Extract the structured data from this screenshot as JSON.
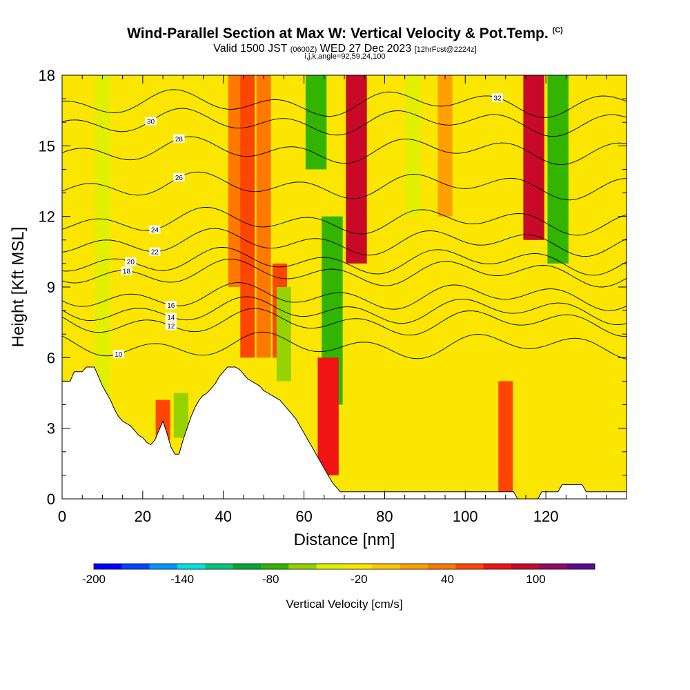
{
  "header": {
    "title": "Wind-Parallel Section at Max W: Vertical Velocity & Pot.Temp.",
    "title_tag": "(C)",
    "subtitle_main": "Valid 1500 JST",
    "subtitle_utc": "(0600Z)",
    "subtitle_date": "WED 27 Dec 2023",
    "subtitle_fcst": "[12hrFcst@2224z]",
    "params": "i,j,k,angle=92,59,24,100"
  },
  "chart_data": {
    "type": "heatmap",
    "xlabel": "Distance [nm]",
    "ylabel": "Height [Kft MSL]",
    "xlim": [
      0,
      140
    ],
    "ylim": [
      0,
      18
    ],
    "x_ticks": [
      0,
      20,
      40,
      60,
      80,
      100,
      120
    ],
    "y_ticks": [
      0,
      3,
      6,
      9,
      12,
      15,
      18
    ],
    "colorbar": {
      "label": "Vertical Velocity [cm/s]",
      "min": -200,
      "max": 140,
      "step": 20,
      "tick_labels": [
        "-200",
        "-140",
        "-80",
        "-20",
        "40",
        "100"
      ],
      "tick_values": [
        -200,
        -140,
        -80,
        -20,
        40,
        100
      ],
      "colors": [
        "#0000ff",
        "#0046ff",
        "#0096ff",
        "#00e1e1",
        "#00c878",
        "#00aa32",
        "#32b400",
        "#96d200",
        "#e1f000",
        "#fae600",
        "#ffc800",
        "#ffa000",
        "#ff7800",
        "#ff4600",
        "#f01414",
        "#c80a28",
        "#960a64",
        "#5a0a96"
      ]
    },
    "terrain": [
      [
        0,
        5.0
      ],
      [
        2,
        5.0
      ],
      [
        3,
        5.4
      ],
      [
        5,
        5.4
      ],
      [
        6,
        5.6
      ],
      [
        8,
        5.6
      ],
      [
        9,
        5.2
      ],
      [
        10,
        4.8
      ],
      [
        11,
        4.5
      ],
      [
        12,
        4.2
      ],
      [
        13,
        3.8
      ],
      [
        14,
        3.5
      ],
      [
        15,
        3.3
      ],
      [
        16,
        3.2
      ],
      [
        17,
        3.1
      ],
      [
        18,
        2.9
      ],
      [
        19,
        2.7
      ],
      [
        20,
        2.6
      ],
      [
        21,
        2.4
      ],
      [
        22,
        2.3
      ],
      [
        23,
        2.5
      ],
      [
        24,
        2.9
      ],
      [
        25,
        3.3
      ],
      [
        26,
        2.8
      ],
      [
        27,
        2.2
      ],
      [
        28,
        1.9
      ],
      [
        29,
        1.9
      ],
      [
        30,
        2.5
      ],
      [
        31,
        3.0
      ],
      [
        32,
        3.5
      ],
      [
        33,
        3.9
      ],
      [
        34,
        4.2
      ],
      [
        35,
        4.4
      ],
      [
        36,
        4.5
      ],
      [
        37,
        4.7
      ],
      [
        38,
        4.9
      ],
      [
        39,
        5.2
      ],
      [
        40,
        5.4
      ],
      [
        41,
        5.6
      ],
      [
        43,
        5.6
      ],
      [
        44,
        5.5
      ],
      [
        45,
        5.3
      ],
      [
        46,
        5.1
      ],
      [
        47,
        5.0
      ],
      [
        48,
        4.9
      ],
      [
        49,
        4.8
      ],
      [
        50,
        4.6
      ],
      [
        51,
        4.5
      ],
      [
        52,
        4.4
      ],
      [
        53,
        4.3
      ],
      [
        54,
        4.2
      ],
      [
        55,
        4.0
      ],
      [
        56,
        3.8
      ],
      [
        57,
        3.6
      ],
      [
        58,
        3.4
      ],
      [
        59,
        3.1
      ],
      [
        60,
        2.8
      ],
      [
        61,
        2.5
      ],
      [
        62,
        2.2
      ],
      [
        63,
        1.9
      ],
      [
        64,
        1.6
      ],
      [
        65,
        1.3
      ],
      [
        66,
        1.0
      ],
      [
        67,
        0.7
      ],
      [
        68,
        0.5
      ],
      [
        69,
        0.3
      ],
      [
        70,
        0.3
      ],
      [
        110,
        0.3
      ],
      [
        112,
        0.3
      ],
      [
        113,
        0.0
      ],
      [
        118,
        0.0
      ],
      [
        119,
        0.3
      ],
      [
        123,
        0.3
      ],
      [
        124,
        0.6
      ],
      [
        129,
        0.6
      ],
      [
        130,
        0.3
      ],
      [
        140,
        0.3
      ]
    ],
    "velocity_bands": [
      {
        "x": 10,
        "z_bottom": 4.5,
        "z_top": 18,
        "value": -40
      },
      {
        "x": 25,
        "z_bottom": 2.5,
        "z_top": 4.2,
        "value": 60
      },
      {
        "x": 29.5,
        "z_bottom": 2.6,
        "z_top": 4.5,
        "value": -60
      },
      {
        "x": 43,
        "z_bottom": 9,
        "z_top": 18,
        "value": 40
      },
      {
        "x": 46,
        "z_bottom": 6,
        "z_top": 18,
        "value": 60
      },
      {
        "x": 50,
        "z_bottom": 6,
        "z_top": 18,
        "value": 40
      },
      {
        "x": 54,
        "z_bottom": 6,
        "z_top": 10,
        "value": 60
      },
      {
        "x": 55,
        "z_bottom": 5,
        "z_top": 9,
        "value": -60
      },
      {
        "x": 59,
        "z_bottom": 7,
        "z_top": 18,
        "value": -20
      },
      {
        "x": 63,
        "z_bottom": 14,
        "z_top": 18,
        "value": -80
      },
      {
        "x": 67,
        "z_bottom": 4,
        "z_top": 12,
        "value": -80
      },
      {
        "x": 66,
        "z_bottom": 1,
        "z_top": 6,
        "value": 80
      },
      {
        "x": 73,
        "z_bottom": 10,
        "z_top": 18,
        "value": 100
      },
      {
        "x": 87,
        "z_bottom": 12,
        "z_top": 18,
        "value": -40
      },
      {
        "x": 95,
        "z_bottom": 12,
        "z_top": 18,
        "value": 20
      },
      {
        "x": 110,
        "z_bottom": 0.3,
        "z_top": 5,
        "value": 60
      },
      {
        "x": 117,
        "z_bottom": 11,
        "z_top": 18,
        "value": 100
      },
      {
        "x": 123,
        "z_bottom": 10,
        "z_top": 18,
        "value": -80
      }
    ],
    "theta_contours": [
      {
        "value": 10,
        "label": "10",
        "label_x": 14,
        "height": 6.5
      },
      {
        "value": 12,
        "label": "12",
        "label_x": 27,
        "height": 7.5
      },
      {
        "value": 14,
        "label": "14",
        "label_x": 27,
        "height": 8.0
      },
      {
        "value": 16,
        "label": "16",
        "label_x": 27,
        "height": 8.6
      },
      {
        "value": 18,
        "label": "18",
        "label_x": 16,
        "height": 9.6
      },
      {
        "value": 20,
        "label": "20",
        "label_x": 17,
        "height": 10.1
      },
      {
        "value": 22,
        "label": "22",
        "label_x": 23,
        "height": 10.9
      },
      {
        "value": 24,
        "label": "24",
        "label_x": 23,
        "height": 11.8
      },
      {
        "value": 26,
        "label": "26",
        "label_x": 29,
        "height": 13.3
      },
      {
        "value": 28,
        "label": "28",
        "label_x": 29,
        "height": 14.8
      },
      {
        "value": 30,
        "label": "30",
        "label_x": 22,
        "height": 16.0
      },
      {
        "value": 32,
        "label": "32",
        "label_x": 108,
        "height": 16.8
      }
    ]
  }
}
